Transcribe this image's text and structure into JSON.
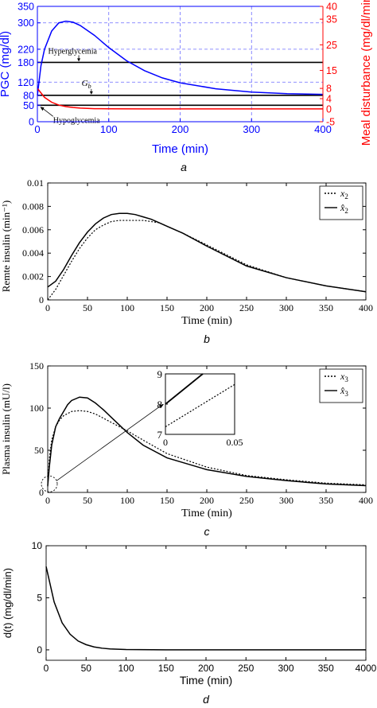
{
  "chart_data": [
    {
      "id": "a",
      "type": "line",
      "panel_letter": "a",
      "xlabel": "Time (min)",
      "ylabel_left": "PGC (mg/dl)",
      "ylabel_right": "Meal disturbance (mg/dl/min)",
      "xlim": [
        0,
        400
      ],
      "xticks": [
        "0",
        "100",
        "200",
        "300",
        "400"
      ],
      "ylim_left": [
        0,
        350
      ],
      "yticks_left": [
        "0",
        "50",
        "80",
        "120",
        "180",
        "220",
        "300",
        "350"
      ],
      "ylim_right": [
        -5,
        40
      ],
      "yticks_right": [
        "-5",
        "0",
        "4",
        "8",
        "15",
        "25",
        "35",
        "40"
      ],
      "grid": true,
      "colors": {
        "left_axis": "#0000ff",
        "right_axis": "#ff0000",
        "lines": "#000000"
      },
      "series": [
        {
          "axis": "left",
          "color": "#0000ff",
          "x": [
            0,
            5,
            10,
            20,
            30,
            40,
            50,
            60,
            80,
            100,
            125,
            150,
            175,
            200,
            250,
            300,
            350,
            400
          ],
          "y": [
            80,
            170,
            220,
            275,
            300,
            305,
            302,
            292,
            262,
            225,
            185,
            155,
            133,
            118,
            100,
            90,
            85,
            83
          ]
        },
        {
          "axis": "right",
          "color": "#ff0000",
          "x": [
            0,
            10,
            20,
            30,
            40,
            50,
            60,
            80,
            100,
            150,
            200,
            250,
            300,
            400
          ],
          "y": [
            8,
            4.5,
            2.6,
            1.5,
            0.9,
            0.55,
            0.3,
            0.1,
            0.03,
            0,
            0,
            0,
            0,
            0
          ]
        }
      ],
      "hlines": [
        {
          "y": 180,
          "label": "Hyperglycemia",
          "label_x": 15,
          "arrow_x": 58
        },
        {
          "y": 80,
          "label": "Gb",
          "label_x": 62,
          "arrow_x": 60
        },
        {
          "y": 50,
          "label": "Hypoglycemia",
          "label_x": 22,
          "arrow_x": 5
        }
      ]
    },
    {
      "id": "b",
      "type": "line",
      "panel_letter": "b",
      "xlabel": "Time (min)",
      "ylabel": "Remte insulin (min⁻¹)",
      "xlim": [
        0,
        400
      ],
      "xticks": [
        "0",
        "50",
        "100",
        "150",
        "200",
        "250",
        "300",
        "350",
        "400"
      ],
      "ylim": [
        0,
        0.01
      ],
      "yticks": [
        "0",
        "0.002",
        "0.004",
        "0.006",
        "0.008",
        "0.01"
      ],
      "legend_position": "top-right",
      "series": [
        {
          "name": "x2",
          "style": "dotted",
          "x": [
            0,
            10,
            20,
            30,
            40,
            50,
            60,
            70,
            80,
            90,
            100,
            110,
            120,
            130,
            140,
            150,
            170,
            200,
            250,
            300,
            350,
            400
          ],
          "y": [
            0,
            0.0009,
            0.0021,
            0.0033,
            0.0044,
            0.0053,
            0.006,
            0.0064,
            0.0067,
            0.0068,
            0.0068,
            0.0068,
            0.0068,
            0.0067,
            0.0066,
            0.0063,
            0.0057,
            0.0047,
            0.003,
            0.0019,
            0.0012,
            0.0007
          ]
        },
        {
          "name": "x̂2",
          "style": "solid",
          "x": [
            0,
            10,
            20,
            30,
            40,
            50,
            60,
            70,
            80,
            90,
            100,
            110,
            120,
            130,
            140,
            150,
            170,
            200,
            250,
            300,
            350,
            400
          ],
          "y": [
            0.0011,
            0.0016,
            0.0026,
            0.0038,
            0.0049,
            0.0058,
            0.0065,
            0.007,
            0.0073,
            0.0074,
            0.0074,
            0.0073,
            0.0071,
            0.0069,
            0.0066,
            0.0063,
            0.0057,
            0.0046,
            0.0029,
            0.0019,
            0.0012,
            0.0007
          ]
        }
      ]
    },
    {
      "id": "c",
      "type": "line",
      "panel_letter": "c",
      "xlabel": "Time (min)",
      "ylabel": "Plasma insulin (mU/l)",
      "xlim": [
        0,
        400
      ],
      "xticks": [
        "0",
        "50",
        "100",
        "150",
        "200",
        "250",
        "300",
        "350",
        "400"
      ],
      "ylim": [
        0,
        150
      ],
      "yticks": [
        "0",
        "50",
        "100",
        "150"
      ],
      "legend_position": "top-right",
      "series": [
        {
          "name": "x3",
          "style": "dotted",
          "x": [
            0,
            2,
            5,
            10,
            15,
            20,
            30,
            40,
            50,
            60,
            70,
            80,
            100,
            120,
            150,
            200,
            250,
            300,
            350,
            400
          ],
          "y": [
            7,
            40,
            62,
            78,
            86,
            91,
            96,
            97,
            96,
            93,
            88,
            83,
            73,
            62,
            46,
            30,
            20,
            15,
            11,
            9
          ]
        },
        {
          "name": "x̂3",
          "style": "solid",
          "x": [
            0,
            2,
            5,
            10,
            15,
            20,
            25,
            30,
            40,
            50,
            60,
            70,
            80,
            90,
            100,
            120,
            150,
            200,
            250,
            300,
            350,
            400
          ],
          "y": [
            8,
            30,
            56,
            78,
            88,
            96,
            104,
            109,
            113,
            112,
            106,
            98,
            89,
            80,
            71,
            56,
            41,
            27,
            19,
            14,
            10,
            8
          ]
        }
      ],
      "inset": {
        "xlim": [
          0,
          0.05
        ],
        "ylim": [
          7,
          9
        ],
        "xticks": [
          "0",
          "0.05"
        ],
        "yticks": [
          "7",
          "8",
          "9"
        ],
        "series": [
          {
            "name": "x3",
            "style": "dotted",
            "x": [
              0,
              0.05
            ],
            "y": [
              7.25,
              8.65
            ]
          },
          {
            "name": "x̂3",
            "style": "solid",
            "x": [
              0,
              0.027
            ],
            "y": [
              8.0,
              9.0
            ]
          }
        ]
      }
    },
    {
      "id": "d",
      "type": "line",
      "panel_letter": "d",
      "xlabel": "Time (min)",
      "ylabel": "d(t) (mg/dl/min)",
      "xlim": [
        0,
        400
      ],
      "xticks": [
        "0",
        "50",
        "100",
        "150",
        "200",
        "250",
        "300",
        "350",
        "4000"
      ],
      "ylim": [
        -1,
        10
      ],
      "yticks": [
        "0",
        "5",
        "10"
      ],
      "series": [
        {
          "style": "solid",
          "x": [
            0,
            10,
            20,
            30,
            40,
            50,
            60,
            70,
            80,
            100,
            150,
            200,
            300,
            400
          ],
          "y": [
            8,
            4.6,
            2.6,
            1.5,
            0.85,
            0.5,
            0.28,
            0.16,
            0.09,
            0.03,
            0,
            0,
            0,
            0
          ]
        }
      ]
    }
  ]
}
